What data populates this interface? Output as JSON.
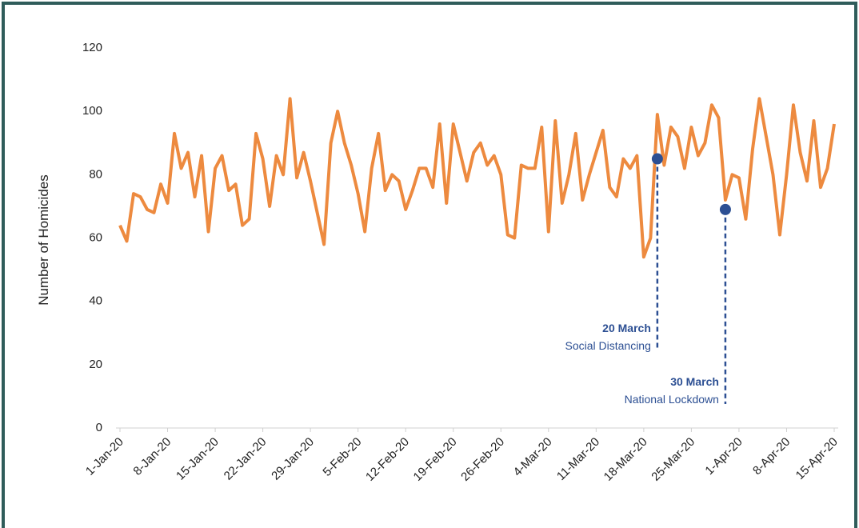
{
  "chart_data": {
    "type": "line",
    "y_label": "Number of Homicides",
    "categories": [
      "1-Jan-20",
      null,
      null,
      null,
      null,
      null,
      null,
      "8-Jan-20",
      null,
      null,
      null,
      null,
      null,
      null,
      "15-Jan-20",
      null,
      null,
      null,
      null,
      null,
      null,
      "22-Jan-20",
      null,
      null,
      null,
      null,
      null,
      null,
      "29-Jan-20",
      null,
      null,
      null,
      null,
      null,
      null,
      "5-Feb-20",
      null,
      null,
      null,
      null,
      null,
      null,
      "12-Feb-20",
      null,
      null,
      null,
      null,
      null,
      null,
      "19-Feb-20",
      null,
      null,
      null,
      null,
      null,
      null,
      "26-Feb-20",
      null,
      null,
      null,
      null,
      null,
      null,
      "4-Mar-20",
      null,
      null,
      null,
      null,
      null,
      null,
      "11-Mar-20",
      null,
      null,
      null,
      null,
      null,
      null,
      "18-Mar-20",
      null,
      null,
      null,
      null,
      null,
      null,
      "25-Mar-20",
      null,
      null,
      null,
      null,
      null,
      null,
      "1-Apr-20",
      null,
      null,
      null,
      null,
      null,
      null,
      "8-Apr-20",
      null,
      null,
      null,
      null,
      null,
      null,
      "15-Apr-20"
    ],
    "values": [
      64,
      59,
      74,
      73,
      69,
      68,
      77,
      71,
      93,
      82,
      87,
      73,
      86,
      62,
      82,
      86,
      75,
      77,
      64,
      66,
      93,
      85,
      70,
      86,
      80,
      104,
      79,
      87,
      78,
      68,
      58,
      90,
      100,
      90,
      83,
      74,
      62,
      82,
      93,
      75,
      80,
      78,
      69,
      75,
      82,
      82,
      76,
      96,
      71,
      96,
      87,
      78,
      87,
      90,
      83,
      86,
      80,
      61,
      60,
      83,
      82,
      82,
      95,
      62,
      97,
      71,
      80,
      93,
      72,
      80,
      87,
      94,
      76,
      73,
      85,
      82,
      86,
      54,
      60,
      99,
      83,
      95,
      92,
      82,
      95,
      86,
      90,
      102,
      98,
      72,
      80,
      79,
      66,
      88,
      104,
      92,
      80,
      61,
      80,
      102,
      87,
      78,
      97,
      76,
      82,
      96
    ],
    "color": "#ed8a3f",
    "ylim": [
      0,
      120
    ],
    "yticks": [
      0,
      20,
      40,
      60,
      80,
      100,
      120
    ],
    "annotations": [
      {
        "date": "20 March",
        "text": "Social Distancing",
        "value": 85,
        "color": "#2c4f93"
      },
      {
        "date": "30 March",
        "text": "National Lockdown",
        "value": 69,
        "color": "#2c4f93"
      }
    ]
  }
}
